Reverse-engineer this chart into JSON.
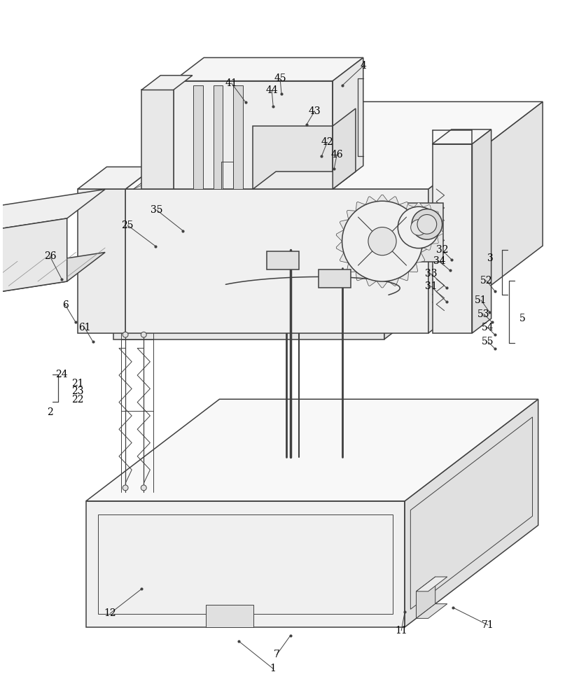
{
  "bg": "#ffffff",
  "lc": "#404040",
  "lw": 1.1,
  "lw_thin": 0.7,
  "fig_w": 8.07,
  "fig_h": 10.0,
  "label_fs": 10,
  "label_color": "#000000"
}
